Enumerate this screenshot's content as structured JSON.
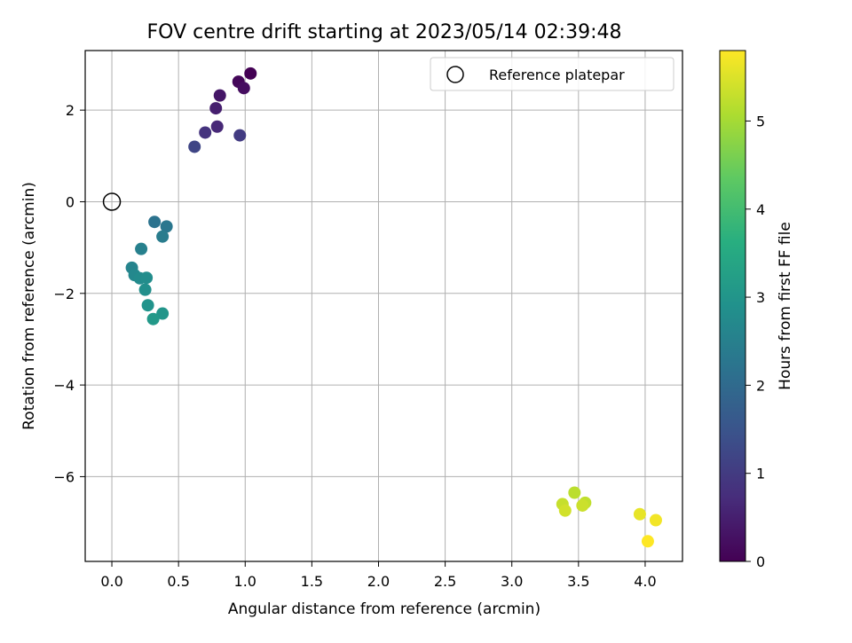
{
  "chart_data": {
    "type": "scatter",
    "title": "FOV centre drift starting at 2023/05/14 02:39:48",
    "xlabel": "Angular distance from reference (arcmin)",
    "ylabel": "Rotation from reference (arcmin)",
    "xlim": [
      -0.2,
      4.28
    ],
    "ylim": [
      -7.85,
      3.3
    ],
    "grid": true,
    "x_ticks": [
      "0.0",
      "0.5",
      "1.0",
      "1.5",
      "2.0",
      "2.5",
      "3.0",
      "3.5",
      "4.0"
    ],
    "y_ticks": [
      "2",
      "0",
      "−2",
      "−4",
      "−6"
    ],
    "legend": {
      "position": "top-right",
      "label": "Reference platepar"
    },
    "reference_point": {
      "x": 0.0,
      "y": 0.0
    },
    "colorbar": {
      "label": "Hours from first FF file",
      "range": [
        0,
        5.8
      ],
      "ticks": [
        "0",
        "1",
        "2",
        "3",
        "4",
        "5"
      ],
      "colormap": "viridis"
    },
    "points": [
      {
        "x": 1.04,
        "y": 2.8,
        "t": 0.0
      },
      {
        "x": 0.95,
        "y": 2.62,
        "t": 0.1
      },
      {
        "x": 0.99,
        "y": 2.48,
        "t": 0.2
      },
      {
        "x": 0.81,
        "y": 2.32,
        "t": 0.35
      },
      {
        "x": 0.78,
        "y": 2.04,
        "t": 0.5
      },
      {
        "x": 0.79,
        "y": 1.64,
        "t": 0.65
      },
      {
        "x": 0.7,
        "y": 1.51,
        "t": 0.85
      },
      {
        "x": 0.96,
        "y": 1.45,
        "t": 1.0
      },
      {
        "x": 0.62,
        "y": 1.2,
        "t": 1.2
      },
      {
        "x": 0.32,
        "y": -0.44,
        "t": 2.2
      },
      {
        "x": 0.41,
        "y": -0.54,
        "t": 2.3
      },
      {
        "x": 0.38,
        "y": -0.76,
        "t": 2.4
      },
      {
        "x": 0.22,
        "y": -1.03,
        "t": 2.5
      },
      {
        "x": 0.15,
        "y": -1.44,
        "t": 2.6
      },
      {
        "x": 0.17,
        "y": -1.6,
        "t": 2.7
      },
      {
        "x": 0.21,
        "y": -1.67,
        "t": 2.75
      },
      {
        "x": 0.26,
        "y": -1.66,
        "t": 2.8
      },
      {
        "x": 0.25,
        "y": -1.92,
        "t": 2.85
      },
      {
        "x": 0.27,
        "y": -2.26,
        "t": 2.95
      },
      {
        "x": 0.38,
        "y": -2.44,
        "t": 3.0
      },
      {
        "x": 0.31,
        "y": -2.56,
        "t": 3.1
      },
      {
        "x": 3.47,
        "y": -6.35,
        "t": 5.2
      },
      {
        "x": 3.55,
        "y": -6.57,
        "t": 5.25
      },
      {
        "x": 3.38,
        "y": -6.6,
        "t": 5.3
      },
      {
        "x": 3.53,
        "y": -6.63,
        "t": 5.35
      },
      {
        "x": 3.4,
        "y": -6.74,
        "t": 5.4
      },
      {
        "x": 3.96,
        "y": -6.82,
        "t": 5.6
      },
      {
        "x": 4.08,
        "y": -6.95,
        "t": 5.7
      },
      {
        "x": 4.02,
        "y": -7.41,
        "t": 5.8
      }
    ]
  }
}
